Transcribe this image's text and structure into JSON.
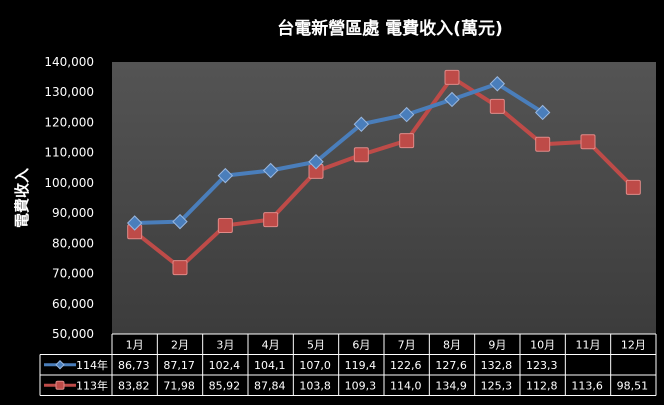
{
  "chart_data": {
    "type": "line",
    "title": "台電新營區處 電費收入(萬元)",
    "ylabel": "電費收入",
    "ylim": [
      50000,
      140000
    ],
    "yticks": [
      "50,000",
      "60,000",
      "70,000",
      "80,000",
      "90,000",
      "100,000",
      "110,000",
      "120,000",
      "130,000",
      "140,000"
    ],
    "grid": false,
    "legend": "table-left",
    "categories": [
      "1月",
      "2月",
      "3月",
      "4月",
      "5月",
      "6月",
      "7月",
      "8月",
      "9月",
      "10月",
      "11月",
      "12月"
    ],
    "series": [
      {
        "name": "114年",
        "color": "#4A7EBB",
        "marker": "diamond",
        "values": [
          86730,
          87170,
          102400,
          104100,
          107000,
          119400,
          122600,
          127600,
          132800,
          123300,
          null,
          null
        ],
        "table_labels": [
          "86,73",
          "87,17",
          "102,4",
          "104,1",
          "107,0",
          "119,4",
          "122,6",
          "127,6",
          "132,8",
          "123,3",
          "",
          ""
        ]
      },
      {
        "name": "113年",
        "color": "#BE4B48",
        "marker": "square",
        "values": [
          83820,
          71980,
          85920,
          87840,
          103800,
          109300,
          114000,
          134900,
          125300,
          112800,
          113600,
          98510
        ],
        "table_labels": [
          "83,82",
          "71,98",
          "85,92",
          "87,84",
          "103,8",
          "109,3",
          "114,0",
          "134,9",
          "125,3",
          "112,8",
          "113,6",
          "98,51"
        ]
      }
    ]
  }
}
